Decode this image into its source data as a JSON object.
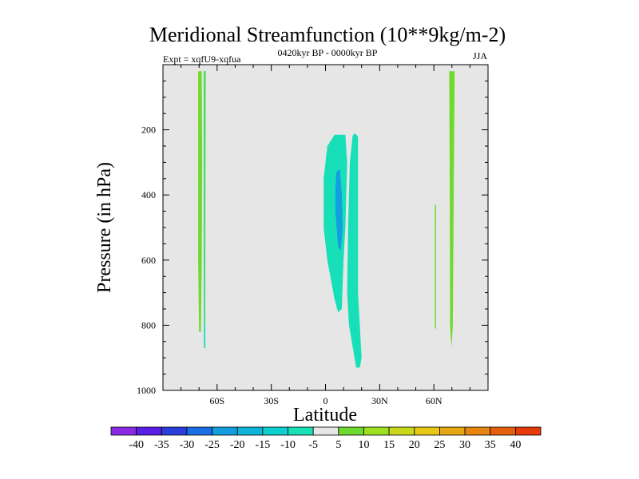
{
  "chart_data": {
    "type": "heatmap",
    "title": "Meridional Streamfunction (10**9kg/m-2)",
    "left_subtitle": "Expt = xqfU9-xqfua",
    "center_subtitle": "0420kyr BP - 0000kyr BP",
    "right_subtitle": "JJA",
    "xlabel": "Latitude",
    "ylabel": "Pressure (in hPa)",
    "xlim": [
      -90,
      90
    ],
    "ylim": [
      1000,
      0
    ],
    "x_ticks": [
      {
        "value": -60,
        "label": "60S"
      },
      {
        "value": -30,
        "label": "30S"
      },
      {
        "value": 0,
        "label": "0"
      },
      {
        "value": 30,
        "label": "30N"
      },
      {
        "value": 60,
        "label": "60N"
      }
    ],
    "y_ticks": [
      {
        "value": 200,
        "label": "200"
      },
      {
        "value": 400,
        "label": "400"
      },
      {
        "value": 600,
        "label": "600"
      },
      {
        "value": 800,
        "label": "800"
      },
      {
        "value": 1000,
        "label": "1000"
      }
    ],
    "background_color": "#e6e6e6",
    "colorbar": {
      "colors": [
        "#8a2be2",
        "#5a1ee6",
        "#2a3fd9",
        "#1c6ee6",
        "#129ee0",
        "#0db3d9",
        "#0ccfcf",
        "#17e0b8",
        "#e6e6e6",
        "#6fd92e",
        "#9de022",
        "#c8d91c",
        "#e6c814",
        "#e6a812",
        "#e6850f",
        "#e6600c",
        "#e63a0a"
      ],
      "labels": [
        "-40",
        "-35",
        "-30",
        "-25",
        "-20",
        "-15",
        "-10",
        "-5",
        "5",
        "10",
        "15",
        "20",
        "25",
        "30",
        "35",
        "40"
      ]
    },
    "regions": [
      {
        "color": "#6fd92e",
        "points": [
          [
            -70.5,
            20
          ],
          [
            -68.5,
            20
          ],
          [
            -68.3,
            300
          ],
          [
            -68.5,
            600
          ],
          [
            -69,
            820
          ],
          [
            -70,
            820
          ],
          [
            -70.5,
            600
          ]
        ]
      },
      {
        "color": "#17e0b8",
        "points": [
          [
            -67.5,
            20
          ],
          [
            -66.3,
            20
          ],
          [
            -66.5,
            500
          ],
          [
            -66.5,
            870
          ],
          [
            -67.3,
            870
          ],
          [
            -67.5,
            500
          ]
        ]
      },
      {
        "color": "#6fd92e",
        "points": [
          [
            -67.3,
            20
          ],
          [
            -66.5,
            20
          ],
          [
            -66.6,
            400
          ],
          [
            -66.8,
            800
          ],
          [
            -67.1,
            800
          ],
          [
            -67.2,
            400
          ]
        ]
      },
      {
        "color": "#6fd92e",
        "points": [
          [
            68.5,
            20
          ],
          [
            71.5,
            20
          ],
          [
            71,
            400
          ],
          [
            70.5,
            800
          ],
          [
            69.8,
            870
          ],
          [
            69,
            800
          ],
          [
            68.8,
            400
          ]
        ]
      },
      {
        "color": "#6fd92e",
        "points": [
          [
            60.5,
            430
          ],
          [
            61.2,
            430
          ],
          [
            61.2,
            810
          ],
          [
            60.6,
            810
          ]
        ]
      },
      {
        "color": "#17e0b8",
        "points": [
          [
            5,
            215
          ],
          [
            11,
            215
          ],
          [
            12,
            300
          ],
          [
            11,
            500
          ],
          [
            10,
            600
          ],
          [
            9,
            750
          ],
          [
            7,
            760
          ],
          [
            5,
            720
          ],
          [
            1,
            600
          ],
          [
            -1,
            500
          ],
          [
            -1,
            350
          ],
          [
            1,
            250
          ]
        ]
      },
      {
        "color": "#17e0b8",
        "points": [
          [
            16,
            210
          ],
          [
            18,
            220
          ],
          [
            18,
            400
          ],
          [
            18,
            700
          ],
          [
            20,
            900
          ],
          [
            19,
            930
          ],
          [
            17,
            930
          ],
          [
            13,
            800
          ],
          [
            12,
            700
          ],
          [
            12.5,
            500
          ],
          [
            13.5,
            300
          ],
          [
            15,
            220
          ]
        ]
      },
      {
        "color": "#129ee0",
        "points": [
          [
            6,
            330
          ],
          [
            8,
            320
          ],
          [
            9,
            400
          ],
          [
            9.5,
            500
          ],
          [
            8.5,
            570
          ],
          [
            7,
            560
          ],
          [
            5.5,
            450
          ],
          [
            5.5,
            380
          ]
        ]
      }
    ]
  }
}
